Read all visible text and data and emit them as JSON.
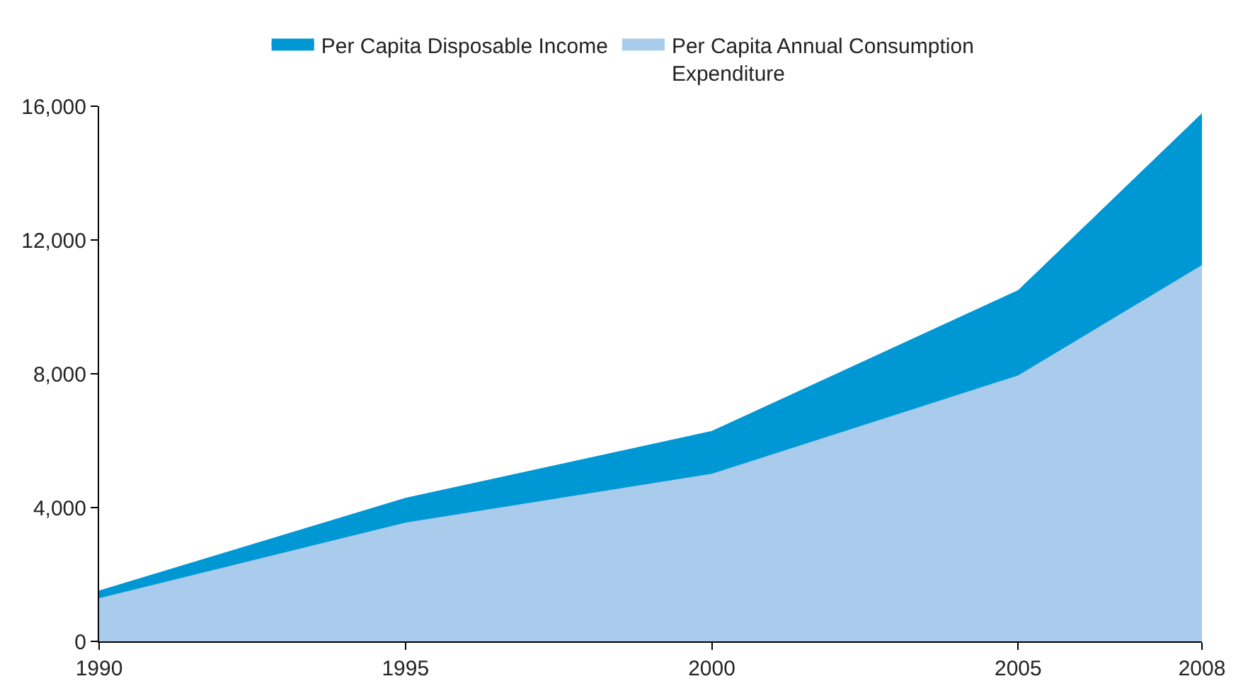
{
  "chart_data": {
    "type": "area",
    "x": [
      1990,
      1995,
      2000,
      2005,
      2008
    ],
    "series": [
      {
        "name": "Per Capita Disposable Income",
        "color": "#0098d4",
        "values": [
          1510,
          4280,
          6280,
          10490,
          15780
        ]
      },
      {
        "name": "Per Capita Annual Consumption Expenditure",
        "color": "#a9cbec",
        "values": [
          1280,
          3540,
          5000,
          7940,
          11240
        ]
      }
    ],
    "xlim": [
      1990,
      2008
    ],
    "xticks": [
      1990,
      1995,
      2000,
      2005,
      2008
    ],
    "ylim": [
      0,
      16000
    ],
    "yticks": [
      {
        "value": 0,
        "label": "0"
      },
      {
        "value": 4000,
        "label": "4,000"
      },
      {
        "value": 8000,
        "label": "8,000"
      },
      {
        "value": 12000,
        "label": "12,000"
      },
      {
        "value": 16000,
        "label": "16,000"
      }
    ],
    "legend": "top"
  }
}
